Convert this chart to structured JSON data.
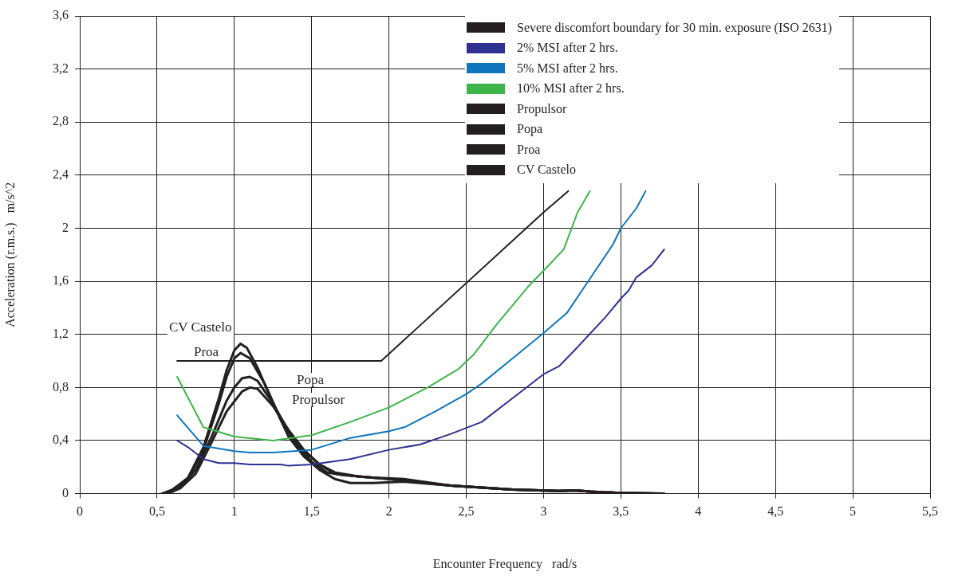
{
  "chart_data": {
    "type": "line",
    "xlabel": "Encounter Frequency   rad/s",
    "ylabel": "Acceleration (r.m.s.)   m/s^2",
    "xlim": [
      0,
      5.5
    ],
    "xticks": [
      0,
      {
        "value": 0.5,
        "label": "0,5"
      },
      1,
      {
        "value": 1.5,
        "label": "1,5"
      },
      2,
      {
        "value": 2.5,
        "label": "2,5"
      },
      3,
      {
        "value": 3.5,
        "label": "3,5"
      },
      4,
      {
        "value": 4.5,
        "label": "4,5"
      },
      5,
      {
        "value": 5.5,
        "label": "5,5"
      }
    ],
    "ylim": [
      0,
      3.6
    ],
    "yticks": [
      0,
      {
        "value": 0.4,
        "label": "0,4"
      },
      {
        "value": 0.8,
        "label": "0,8"
      },
      {
        "value": 1.2,
        "label": "1,2"
      },
      {
        "value": 1.6,
        "label": "1,6"
      },
      2,
      {
        "value": 2.4,
        "label": "2,4"
      },
      {
        "value": 2.8,
        "label": "2,8"
      },
      {
        "value": 3.2,
        "label": "3,2"
      },
      {
        "value": 3.6,
        "label": "3,6"
      }
    ],
    "grid": true,
    "legend": "top right",
    "marker": "none",
    "line_style": "solid",
    "series": [
      {
        "name": "Severe discomfort boundary for 30 min. exposure (ISO 2631)",
        "color": "#231f20",
        "x": [
          0.63,
          1.95,
          3.0,
          3.16
        ],
        "values": [
          1.0,
          1.0,
          2.12,
          2.28
        ]
      },
      {
        "name": "2% MSI after 2 hrs.",
        "color": "#2e3192",
        "x": [
          0.63,
          0.7,
          0.8,
          0.9,
          1.0,
          1.1,
          1.3,
          1.35,
          1.5,
          1.75,
          2.0,
          2.2,
          2.4,
          2.6,
          2.8,
          3.0,
          3.1,
          3.2,
          3.4,
          3.5,
          3.55,
          3.6,
          3.7,
          3.78
        ],
        "values": [
          0.4,
          0.35,
          0.26,
          0.23,
          0.23,
          0.22,
          0.22,
          0.21,
          0.22,
          0.26,
          0.33,
          0.37,
          0.45,
          0.54,
          0.72,
          0.9,
          0.96,
          1.08,
          1.33,
          1.47,
          1.53,
          1.63,
          1.72,
          1.84
        ]
      },
      {
        "name": "5% MSI after 2 hrs.",
        "color": "#0f75bc",
        "x": [
          0.63,
          0.8,
          1.0,
          1.1,
          1.25,
          1.5,
          1.75,
          2.0,
          2.1,
          2.3,
          2.5,
          2.6,
          2.8,
          3.0,
          3.15,
          3.3,
          3.45,
          3.5,
          3.6,
          3.66
        ],
        "values": [
          0.59,
          0.36,
          0.32,
          0.31,
          0.31,
          0.33,
          0.42,
          0.47,
          0.5,
          0.62,
          0.75,
          0.83,
          1.02,
          1.21,
          1.36,
          1.62,
          1.88,
          2.0,
          2.15,
          2.28
        ]
      },
      {
        "name": "10% MSI after 2 hrs.",
        "color": "#3db54a",
        "x": [
          0.63,
          0.8,
          1.0,
          1.25,
          1.5,
          1.75,
          2.0,
          2.25,
          2.45,
          2.55,
          2.7,
          2.9,
          3.0,
          3.13,
          3.22,
          3.3
        ],
        "values": [
          0.88,
          0.5,
          0.43,
          0.4,
          0.44,
          0.54,
          0.65,
          0.8,
          0.94,
          1.05,
          1.28,
          1.56,
          1.68,
          1.84,
          2.12,
          2.28
        ]
      },
      {
        "name": "Propulsor",
        "color": "#231f20",
        "x": [
          0.57,
          0.65,
          0.75,
          0.85,
          0.95,
          1.05,
          1.1,
          1.15,
          1.25,
          1.35,
          1.45,
          1.55,
          1.65,
          1.8,
          2.0,
          2.4,
          2.8,
          3.1,
          3.2,
          3.3,
          3.5,
          3.72
        ],
        "values": [
          0,
          0.04,
          0.15,
          0.38,
          0.62,
          0.77,
          0.8,
          0.79,
          0.66,
          0.48,
          0.33,
          0.22,
          0.16,
          0.13,
          0.11,
          0.06,
          0.03,
          0.02,
          0.025,
          0.015,
          0.005,
          0
        ]
      },
      {
        "name": "Popa",
        "color": "#231f20",
        "x": [
          0.55,
          0.65,
          0.75,
          0.85,
          0.95,
          1.0,
          1.05,
          1.1,
          1.15,
          1.25,
          1.35,
          1.45,
          1.55,
          1.65,
          1.8,
          2.0,
          2.4,
          2.8,
          3.1,
          3.2,
          3.3,
          3.5,
          3.74
        ],
        "values": [
          0,
          0.05,
          0.18,
          0.42,
          0.7,
          0.8,
          0.87,
          0.88,
          0.85,
          0.68,
          0.47,
          0.32,
          0.22,
          0.15,
          0.13,
          0.11,
          0.06,
          0.03,
          0.02,
          0.025,
          0.015,
          0.005,
          0
        ]
      },
      {
        "name": "Proa",
        "color": "#231f20",
        "x": [
          0.55,
          0.6,
          0.7,
          0.8,
          0.9,
          0.95,
          1.0,
          1.04,
          1.1,
          1.2,
          1.3,
          1.4,
          1.5,
          1.6,
          1.7,
          1.9,
          2.1,
          2.4,
          2.8,
          3.1,
          3.2,
          3.3,
          3.5,
          3.76
        ],
        "values": [
          0,
          0.03,
          0.11,
          0.33,
          0.68,
          0.88,
          1.02,
          1.06,
          1.02,
          0.82,
          0.56,
          0.37,
          0.24,
          0.16,
          0.14,
          0.12,
          0.11,
          0.06,
          0.03,
          0.02,
          0.025,
          0.015,
          0.005,
          0
        ]
      },
      {
        "name": "CV Castelo",
        "color": "#231f20",
        "x": [
          0.53,
          0.6,
          0.7,
          0.8,
          0.9,
          0.95,
          1.0,
          1.04,
          1.08,
          1.15,
          1.25,
          1.35,
          1.45,
          1.55,
          1.65,
          1.75,
          1.9,
          2.1,
          2.4,
          2.8,
          3.1,
          3.2,
          3.3,
          3.5,
          3.78
        ],
        "values": [
          0,
          0.03,
          0.12,
          0.35,
          0.72,
          0.93,
          1.08,
          1.13,
          1.1,
          0.95,
          0.68,
          0.43,
          0.28,
          0.18,
          0.11,
          0.08,
          0.08,
          0.09,
          0.06,
          0.03,
          0.02,
          0.025,
          0.015,
          0.005,
          0
        ]
      }
    ],
    "annotations": [
      "CV Castelo",
      "Proa",
      "Popa",
      "Propulsor"
    ]
  }
}
